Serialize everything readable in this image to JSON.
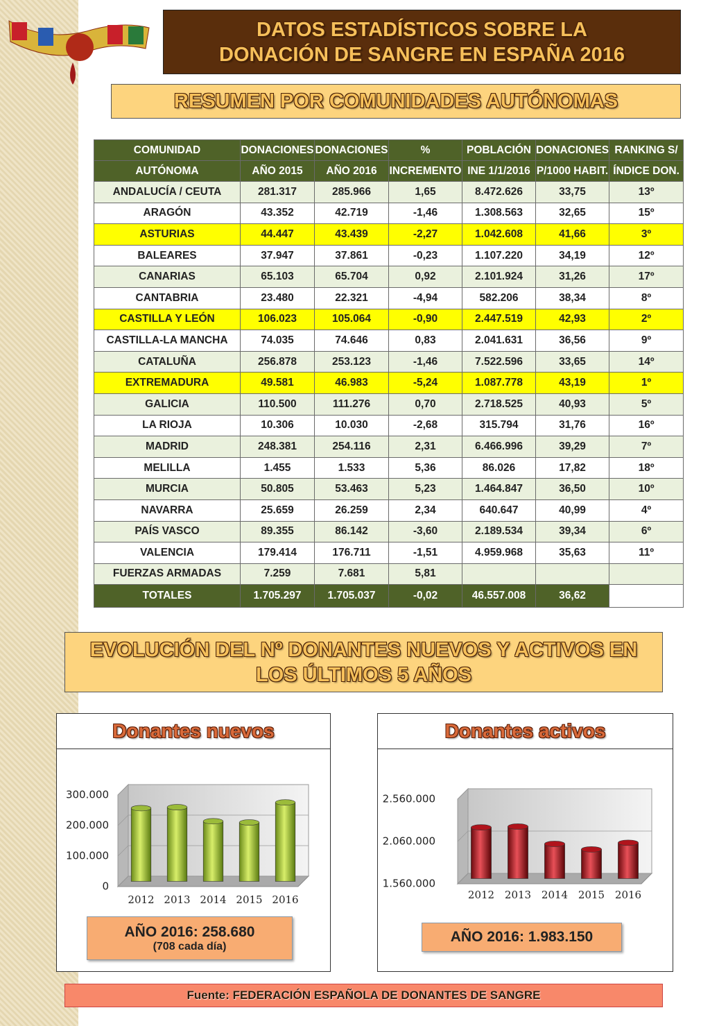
{
  "header": {
    "title": [
      "DATOS ESTADÍSTICOS SOBRE LA",
      "DONACIÓN DE SANGRE EN ESPAÑA 2016"
    ],
    "subtitle": "RESUMEN POR COMUNIDADES AUTÓNOMAS"
  },
  "table": {
    "header": [
      [
        "COMUNIDAD",
        "DONACIONES",
        "DONACIONES",
        "%",
        "POBLACIÓN",
        "DONACIONES",
        "RANKING S/"
      ],
      [
        "AUTÓNOMA",
        "AÑO 2015",
        "AÑO 2016",
        "INCREMENTO",
        "INE 1/1/2016",
        "P/1000 HABIT.",
        "ÍNDICE DON."
      ]
    ],
    "rows": [
      [
        "ANDALUCÍA / CEUTA",
        "281.317",
        "285.966",
        "1,65",
        "8.472.626",
        "33,75",
        "13º"
      ],
      [
        "ARAGÓN",
        "43.352",
        "42.719",
        "-1,46",
        "1.308.563",
        "32,65",
        "15º"
      ],
      [
        "ASTURIAS",
        "44.447",
        "43.439",
        "-2,27",
        "1.042.608",
        "41,66",
        "3º"
      ],
      [
        "BALEARES",
        "37.947",
        "37.861",
        "-0,23",
        "1.107.220",
        "34,19",
        "12º"
      ],
      [
        "CANARIAS",
        "65.103",
        "65.704",
        "0,92",
        "2.101.924",
        "31,26",
        "17º"
      ],
      [
        "CANTABRIA",
        "23.480",
        "22.321",
        "-4,94",
        "582.206",
        "38,34",
        "8º"
      ],
      [
        "CASTILLA Y LEÓN",
        "106.023",
        "105.064",
        "-0,90",
        "2.447.519",
        "42,93",
        "2º"
      ],
      [
        "CASTILLA-LA MANCHA",
        "74.035",
        "74.646",
        "0,83",
        "2.041.631",
        "36,56",
        "9º"
      ],
      [
        "CATALUÑA",
        "256.878",
        "253.123",
        "-1,46",
        "7.522.596",
        "33,65",
        "14º"
      ],
      [
        "EXTREMADURA",
        "49.581",
        "46.983",
        "-5,24",
        "1.087.778",
        "43,19",
        "1º"
      ],
      [
        "GALICIA",
        "110.500",
        "111.276",
        "0,70",
        "2.718.525",
        "40,93",
        "5º"
      ],
      [
        "LA RIOJA",
        "10.306",
        "10.030",
        "-2,68",
        "315.794",
        "31,76",
        "16º"
      ],
      [
        "MADRID",
        "248.381",
        "254.116",
        "2,31",
        "6.466.996",
        "39,29",
        "7º"
      ],
      [
        "MELILLA",
        "1.455",
        "1.533",
        "5,36",
        "86.026",
        "17,82",
        "18º"
      ],
      [
        "MURCIA",
        "50.805",
        "53.463",
        "5,23",
        "1.464.847",
        "36,50",
        "10º"
      ],
      [
        "NAVARRA",
        "25.659",
        "26.259",
        "2,34",
        "640.647",
        "40,99",
        "4º"
      ],
      [
        "PAÍS VASCO",
        "89.355",
        "86.142",
        "-3,60",
        "2.189.534",
        "39,34",
        "6º"
      ],
      [
        "VALENCIA",
        "179.414",
        "176.711",
        "-1,51",
        "4.959.968",
        "35,63",
        "11º"
      ],
      [
        "FUERZAS ARMADAS",
        "7.259",
        "7.681",
        "5,81",
        null,
        null,
        null
      ]
    ],
    "totals": [
      "TOTALES",
      "1.705.297",
      "1.705.037",
      "-0,02",
      "46.557.008",
      "36,62",
      null
    ]
  },
  "section": {
    "title": [
      "EVOLUCIÓN DEL Nº DONANTES NUEVOS Y ACTIVOS EN",
      "LOS ÚLTIMOS 5 AÑOS"
    ]
  },
  "chart_data": [
    {
      "type": "bar",
      "title": "Donantes nuevos",
      "categories": [
        "2012",
        "2013",
        "2014",
        "2015",
        "2016"
      ],
      "values": [
        240000,
        243000,
        197000,
        193000,
        258680
      ],
      "color": "#9bbb3a",
      "ylim": [
        0,
        300000
      ],
      "yticks": [
        0,
        {
          "value": 100000,
          "label": "100.000"
        },
        {
          "value": 200000,
          "label": "200.000"
        },
        {
          "value": 300000,
          "label": "300.000"
        }
      ],
      "annotation": [
        "AÑO 2016: 258.680",
        "(708 cada día)"
      ]
    },
    {
      "type": "bar",
      "title": "Donantes activos",
      "categories": [
        "2012",
        "2013",
        "2014",
        "2015",
        "2016"
      ],
      "values": [
        2165000,
        2175000,
        1970000,
        1905000,
        1983150
      ],
      "color": "#b0141c",
      "ylim": [
        1560000,
        2560000
      ],
      "yticks": [
        {
          "value": 1560000,
          "label": "1.560.000"
        },
        {
          "value": 2060000,
          "label": "2.060.000"
        },
        {
          "value": 2560000,
          "label": "2.560.000"
        }
      ],
      "annotation": [
        "AÑO 2016: 1.983.150"
      ]
    }
  ],
  "footer": {
    "source": "Fuente: FEDERACIÓN ESPAÑOLA DE DONANTES DE SANGRE"
  }
}
